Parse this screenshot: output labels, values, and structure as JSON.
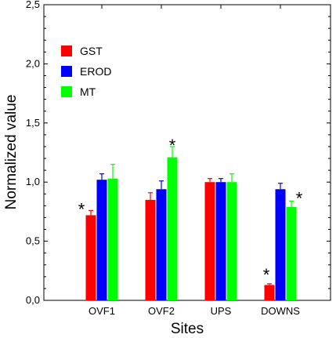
{
  "chart_data": {
    "type": "bar",
    "xlabel": "Sites",
    "ylabel": "Normalized value",
    "ylim": [
      0,
      2.5
    ],
    "yticks": [
      "0,0",
      "0,5",
      "1,0",
      "1,5",
      "2,0",
      "2,5"
    ],
    "ytick_values": [
      0,
      0.5,
      1.0,
      1.5,
      2.0,
      2.5
    ],
    "categories": [
      "OVF1",
      "OVF2",
      "UPS",
      "DOWNS"
    ],
    "series": [
      {
        "name": "GST",
        "color": "#ff0000",
        "values": [
          0.72,
          0.85,
          1.0,
          0.13
        ],
        "errors": [
          0.04,
          0.06,
          0.03,
          0.01
        ]
      },
      {
        "name": "EROD",
        "color": "#0000ff",
        "values": [
          1.02,
          0.94,
          1.0,
          0.94
        ],
        "errors": [
          0.05,
          0.07,
          0.03,
          0.05
        ]
      },
      {
        "name": "MT",
        "color": "#00ff00",
        "values": [
          1.03,
          1.21,
          1.0,
          0.79
        ],
        "errors": [
          0.12,
          0.09,
          0.07,
          0.05
        ]
      }
    ],
    "significance": [
      {
        "category": "OVF1",
        "series": "GST",
        "label": "*"
      },
      {
        "category": "OVF2",
        "series": "MT",
        "label": "*"
      },
      {
        "category": "DOWNS",
        "series": "GST",
        "label": "*"
      },
      {
        "category": "DOWNS",
        "series": "MT",
        "label": "*"
      }
    ],
    "legend_position": "top-left",
    "grid": false
  }
}
